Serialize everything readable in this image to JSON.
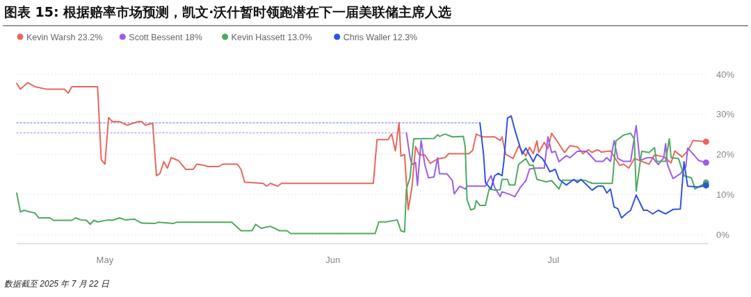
{
  "chart_data": {
    "type": "line",
    "title": "图表 15: 根据赔率市场预测，凯文·沃什暂时领跑潜在下一届美联储主席人选",
    "annotations": [
      "数据截至 2025 年 7 月 22 日"
    ],
    "xlim": [
      "2025-04-19",
      "2025-07-22"
    ],
    "xticks": [
      {
        "value": "2025-05-01",
        "label": "May"
      },
      {
        "value": "2025-06-01",
        "label": "Jun"
      },
      {
        "value": "2025-07-01",
        "label": "Jul"
      }
    ],
    "ylim": [
      -2.2,
      40
    ],
    "yticks": [
      {
        "value": 0,
        "label": "0%"
      },
      {
        "value": 10,
        "label": "10%"
      },
      {
        "value": 20,
        "label": "20%"
      },
      {
        "value": 30,
        "label": "30%"
      },
      {
        "value": 40,
        "label": "40%"
      }
    ],
    "grid": "y",
    "legend": "top left",
    "series": [
      {
        "color": "#8a9cf5",
        "line_style": "dotted",
        "x": [
          "2025-04-19T00:00",
          "2025-06-21T00:00"
        ],
        "values": [
          27.9,
          27.9
        ]
      },
      {
        "color": "#c8a2f0",
        "line_style": "dotted",
        "x": [
          "2025-04-19T00:00",
          "2025-06-11T00:00"
        ],
        "values": [
          25.4,
          25.4
        ]
      },
      {
        "name": "Kevin Warsh 23.2%",
        "color": "#e8665a",
        "x": [
          "2025-04-19T00:00",
          "2025-04-19T12:00",
          "2025-04-20T12:00",
          "2025-04-21T12:00",
          "2025-04-23T00:00",
          "2025-04-25T12:00",
          "2025-04-26T00:00",
          "2025-04-26T12:00",
          "2025-04-30T00:00",
          "2025-04-30T12:00",
          "2025-05-01T00:00",
          "2025-05-01T12:00",
          "2025-05-02T00:00",
          "2025-05-03T00:00",
          "2025-05-04T00:00",
          "2025-05-05T12:00",
          "2025-05-06T00:00",
          "2025-05-06T12:00",
          "2025-05-07T12:00",
          "2025-05-08T00:00",
          "2025-05-08T12:00",
          "2025-05-09T00:00",
          "2025-05-09T12:00",
          "2025-05-10T00:00",
          "2025-05-11T00:00",
          "2025-05-12T00:00",
          "2025-05-13T00:00",
          "2025-05-13T12:00",
          "2025-05-14T12:00",
          "2025-05-15T00:00",
          "2025-05-16T12:00",
          "2025-05-17T00:00",
          "2025-05-19T00:00",
          "2025-05-19T12:00",
          "2025-05-20T00:00",
          "2025-05-22T12:00",
          "2025-05-23T00:00",
          "2025-05-23T12:00",
          "2025-05-24T12:00",
          "2025-05-25T00:00",
          "2025-06-06T12:00",
          "2025-06-07T00:00",
          "2025-06-08T12:00",
          "2025-06-09T00:00",
          "2025-06-09T12:00",
          "2025-06-10T00:00",
          "2025-06-10T06:00",
          "2025-06-10T18:00",
          "2025-06-11T00:00",
          "2025-06-11T06:00",
          "2025-06-11T18:00",
          "2025-06-12T06:00",
          "2025-06-12T18:00",
          "2025-06-13T12:00",
          "2025-06-14T06:00",
          "2025-06-15T06:00",
          "2025-06-16T06:00",
          "2025-06-16T18:00",
          "2025-06-19T12:00",
          "2025-06-20T00:00",
          "2025-06-20T12:00",
          "2025-06-21T06:00",
          "2025-06-23T00:00",
          "2025-06-23T18:00",
          "2025-06-24T00:00",
          "2025-06-24T12:00",
          "2025-06-25T12:00",
          "2025-06-26T06:00",
          "2025-06-27T06:00",
          "2025-06-27T18:00",
          "2025-06-28T06:00",
          "2025-06-28T18:00",
          "2025-06-29T00:00",
          "2025-06-29T18:00",
          "2025-06-30T06:00",
          "2025-06-30T18:00",
          "2025-07-01T12:00",
          "2025-07-02T12:00",
          "2025-07-03T06:00",
          "2025-07-04T06:00",
          "2025-07-05T00:00",
          "2025-07-05T18:00",
          "2025-07-06T06:00",
          "2025-07-07T00:00",
          "2025-07-07T12:00",
          "2025-07-08T18:00",
          "2025-07-10T00:00",
          "2025-07-10T12:00",
          "2025-07-11T06:00",
          "2025-07-12T00:00",
          "2025-07-14T00:00",
          "2025-07-14T18:00",
          "2025-07-16T00:00",
          "2025-07-17T00:00",
          "2025-07-17T12:00",
          "2025-07-18T12:00",
          "2025-07-19T06:00",
          "2025-07-20T00:00",
          "2025-07-21T18:00"
        ],
        "values": [
          37.7,
          36.3,
          37.9,
          36.9,
          36.3,
          36.3,
          35.3,
          36.9,
          36.9,
          18.7,
          17.6,
          29.2,
          28.2,
          28.2,
          27.3,
          28.2,
          28.2,
          27.3,
          27.8,
          14.7,
          15.3,
          18.2,
          16.6,
          19.2,
          18.5,
          16.3,
          16.3,
          17.6,
          17.3,
          17.0,
          17.0,
          17.6,
          17.6,
          16.3,
          13.1,
          12.8,
          12.1,
          12.8,
          12.1,
          12.8,
          12.8,
          23.7,
          23.7,
          25.1,
          20.9,
          28.0,
          19.6,
          20.0,
          13.0,
          6.2,
          11.8,
          22.0,
          19.9,
          19.9,
          17.8,
          18.9,
          19.2,
          20.2,
          20.2,
          21.0,
          25.1,
          24.4,
          24.4,
          23.5,
          24.4,
          20.1,
          19.0,
          22.1,
          19.6,
          21.8,
          20.2,
          23.4,
          20.5,
          23.0,
          21.5,
          25.3,
          23.3,
          20.5,
          22.2,
          21.9,
          20.2,
          21.2,
          20.5,
          21.2,
          20.6,
          20.9,
          17.3,
          17.6,
          16.6,
          19.0,
          17.6,
          19.9,
          19.4,
          17.9,
          20.9,
          19.4,
          20.9,
          23.5,
          23.2
        ]
      },
      {
        "name": "Scott Bessent 18%",
        "color": "#9b5de5",
        "x": [
          "2025-06-11T00:00",
          "2025-06-11T12:00",
          "2025-06-11T18:00",
          "2025-06-12T06:00",
          "2025-06-12T12:00",
          "2025-06-13T00:00",
          "2025-06-13T12:00",
          "2025-06-14T00:00",
          "2025-06-14T18:00",
          "2025-06-15T06:00",
          "2025-06-15T12:00",
          "2025-06-16T12:00",
          "2025-06-17T06:00",
          "2025-06-17T12:00",
          "2025-06-18T06:00",
          "2025-06-19T00:00",
          "2025-06-19T06:00",
          "2025-06-21T00:00",
          "2025-06-21T18:00",
          "2025-06-22T12:00",
          "2025-06-23T00:00",
          "2025-06-23T18:00",
          "2025-06-24T00:00",
          "2025-06-25T00:00",
          "2025-06-25T18:00",
          "2025-06-26T12:00",
          "2025-06-27T06:00",
          "2025-06-27T18:00",
          "2025-06-28T12:00",
          "2025-06-29T18:00",
          "2025-06-30T06:00",
          "2025-06-30T18:00",
          "2025-07-01T06:00",
          "2025-07-01T18:00",
          "2025-07-02T18:00",
          "2025-07-03T06:00",
          "2025-07-04T06:00",
          "2025-07-05T12:00",
          "2025-07-06T18:00",
          "2025-07-07T18:00",
          "2025-07-08T06:00",
          "2025-07-08T18:00",
          "2025-07-09T06:00",
          "2025-07-09T18:00",
          "2025-07-10T12:00",
          "2025-07-11T12:00",
          "2025-07-12T06:00",
          "2025-07-12T18:00",
          "2025-07-13T18:00",
          "2025-07-14T12:00",
          "2025-07-15T06:00",
          "2025-07-16T00:00",
          "2025-07-16T06:00",
          "2025-07-16T12:00",
          "2025-07-17T06:00",
          "2025-07-18T06:00",
          "2025-07-19T00:00",
          "2025-07-19T06:00",
          "2025-07-20T00:00",
          "2025-07-20T18:00",
          "2025-07-21T18:00"
        ],
        "values": [
          25.4,
          19.2,
          17.5,
          18.0,
          12.3,
          23.5,
          17.5,
          14.2,
          14.4,
          19.2,
          15.2,
          15.2,
          13.5,
          10.2,
          12.1,
          11.4,
          12.1,
          12.1,
          12.1,
          14.7,
          11.8,
          9.5,
          10.7,
          10.1,
          9.5,
          11.8,
          13.5,
          16.4,
          16.6,
          16.6,
          24.4,
          20.5,
          20.8,
          18.2,
          19.7,
          19.2,
          20.8,
          20.8,
          18.3,
          18.3,
          19.2,
          18.3,
          23.5,
          19.0,
          18.3,
          18.3,
          27.2,
          18.5,
          19.2,
          19.2,
          17.5,
          19.2,
          22.7,
          17.5,
          14.0,
          15.2,
          16.9,
          21.6,
          20.1,
          18.5,
          18.0
        ]
      },
      {
        "name": "Kevin Hassett 13.0%",
        "color": "#4caa5e",
        "x": [
          "2025-04-19T00:00",
          "2025-04-19T12:00",
          "2025-04-20T00:00",
          "2025-04-20T18:00",
          "2025-04-21T12:00",
          "2025-04-22T00:00",
          "2025-04-23T12:00",
          "2025-04-24T00:00",
          "2025-04-26T12:00",
          "2025-04-27T00:00",
          "2025-04-27T18:00",
          "2025-04-28T12:00",
          "2025-04-29T00:00",
          "2025-04-29T12:00",
          "2025-04-30T00:00",
          "2025-05-01T12:00",
          "2025-05-02T00:00",
          "2025-05-03T00:00",
          "2025-05-03T18:00",
          "2025-05-05T00:00",
          "2025-05-06T00:00",
          "2025-05-07T18:00",
          "2025-05-08T06:00",
          "2025-05-10T06:00",
          "2025-05-10T18:00",
          "2025-05-18T06:00",
          "2025-05-19T12:00",
          "2025-05-21T00:00",
          "2025-05-21T12:00",
          "2025-05-22T06:00",
          "2025-05-23T12:00",
          "2025-05-24T18:00",
          "2025-05-25T18:00",
          "2025-05-26T06:00",
          "2025-06-06T18:00",
          "2025-06-07T06:00",
          "2025-06-08T06:00",
          "2025-06-09T18:00",
          "2025-06-10T06:00",
          "2025-06-10T18:00",
          "2025-06-11T00:00",
          "2025-06-11T12:00",
          "2025-06-12T00:00",
          "2025-06-14T18:00",
          "2025-06-15T06:00",
          "2025-06-15T12:00",
          "2025-06-16T06:00",
          "2025-06-17T06:00",
          "2025-06-18T18:00",
          "2025-06-19T00:00",
          "2025-06-19T06:00",
          "2025-06-19T18:00",
          "2025-06-20T06:00",
          "2025-06-20T12:00",
          "2025-06-21T00:00",
          "2025-06-21T18:00",
          "2025-06-22T06:00",
          "2025-06-23T00:00",
          "2025-06-23T18:00",
          "2025-06-24T00:00",
          "2025-06-24T18:00",
          "2025-06-25T00:00",
          "2025-06-25T18:00",
          "2025-06-26T06:00",
          "2025-06-27T06:00",
          "2025-06-27T18:00",
          "2025-06-28T06:00",
          "2025-06-28T18:00",
          "2025-06-30T00:00",
          "2025-06-30T18:00",
          "2025-07-01T18:00",
          "2025-07-02T06:00",
          "2025-07-05T06:00",
          "2025-07-06T06:00",
          "2025-07-09T00:00",
          "2025-07-09T12:00",
          "2025-07-10T12:00",
          "2025-07-11T12:00",
          "2025-07-12T00:00",
          "2025-07-12T06:00",
          "2025-07-13T00:00",
          "2025-07-14T00:00",
          "2025-07-14T18:00",
          "2025-07-15T00:00",
          "2025-07-16T06:00",
          "2025-07-16T18:00",
          "2025-07-17T00:00",
          "2025-07-18T00:00",
          "2025-07-18T18:00",
          "2025-07-19T18:00",
          "2025-07-20T06:00",
          "2025-07-21T18:00"
        ],
        "values": [
          10.4,
          5.7,
          6.1,
          5.7,
          5.4,
          4.2,
          4.2,
          3.6,
          3.6,
          4.2,
          3.7,
          3.6,
          2.6,
          3.6,
          3.2,
          3.7,
          3.6,
          4.2,
          3.7,
          3.9,
          2.9,
          2.8,
          3.1,
          2.8,
          3.1,
          3.1,
          1.0,
          1.0,
          2.6,
          1.6,
          2.1,
          1.0,
          1.0,
          0.3,
          0.3,
          3.2,
          3.2,
          3.7,
          1.0,
          0.7,
          11.4,
          14.3,
          23.9,
          24.0,
          24.9,
          24.5,
          25.1,
          24.4,
          24.5,
          21.8,
          8.7,
          6.2,
          6.5,
          8.5,
          7.3,
          7.3,
          11.4,
          11.1,
          11.2,
          13.8,
          13.8,
          12.4,
          12.4,
          17.5,
          19.0,
          17.3,
          17.3,
          13.8,
          13.2,
          13.5,
          11.4,
          13.6,
          13.6,
          12.8,
          12.8,
          23.4,
          24.8,
          25.3,
          23.8,
          10.9,
          20.8,
          20.5,
          21.7,
          18.3,
          18.3,
          23.9,
          19.2,
          19.0,
          14.7,
          14.2,
          11.4,
          13.0
        ]
      },
      {
        "name": "Chris Waller 12.3%",
        "color": "#2f52e0",
        "x": [
          "2025-06-21T00:00",
          "2025-06-21T12:00",
          "2025-06-21T18:00",
          "2025-06-22T12:00",
          "2025-06-23T00:00",
          "2025-06-23T12:00",
          "2025-06-24T00:00",
          "2025-06-24T06:00",
          "2025-06-24T18:00",
          "2025-06-25T06:00",
          "2025-06-25T18:00",
          "2025-06-26T18:00",
          "2025-06-27T06:00",
          "2025-06-27T18:00",
          "2025-06-28T06:00",
          "2025-06-28T18:00",
          "2025-06-29T12:00",
          "2025-06-30T00:00",
          "2025-06-30T12:00",
          "2025-07-01T06:00",
          "2025-07-01T18:00",
          "2025-07-02T18:00",
          "2025-07-03T18:00",
          "2025-07-04T06:00",
          "2025-07-04T18:00",
          "2025-07-06T06:00",
          "2025-07-07T00:00",
          "2025-07-07T18:00",
          "2025-07-08T06:00",
          "2025-07-08T18:00",
          "2025-07-09T06:00",
          "2025-07-09T18:00",
          "2025-07-10T06:00",
          "2025-07-11T00:00",
          "2025-07-11T12:00",
          "2025-07-12T06:00",
          "2025-07-13T06:00",
          "2025-07-13T18:00",
          "2025-07-14T12:00",
          "2025-07-15T06:00",
          "2025-07-16T06:00",
          "2025-07-17T06:00",
          "2025-07-18T06:00",
          "2025-07-18T18:00",
          "2025-07-19T06:00",
          "2025-07-20T18:00",
          "2025-07-21T18:00"
        ],
        "values": [
          27.9,
          19.9,
          13.0,
          11.4,
          14.7,
          15.3,
          14.7,
          18.2,
          29.1,
          29.6,
          26.1,
          20.1,
          21.6,
          19.9,
          18.2,
          20.1,
          19.0,
          17.5,
          15.7,
          16.3,
          13.8,
          12.4,
          13.8,
          13.0,
          13.8,
          11.1,
          12.1,
          12.1,
          10.4,
          11.4,
          6.9,
          6.5,
          4.2,
          5.4,
          6.1,
          9.9,
          6.1,
          6.1,
          5.2,
          6.1,
          5.2,
          6.3,
          6.4,
          18.2,
          12.1,
          11.9,
          12.3
        ]
      }
    ]
  }
}
